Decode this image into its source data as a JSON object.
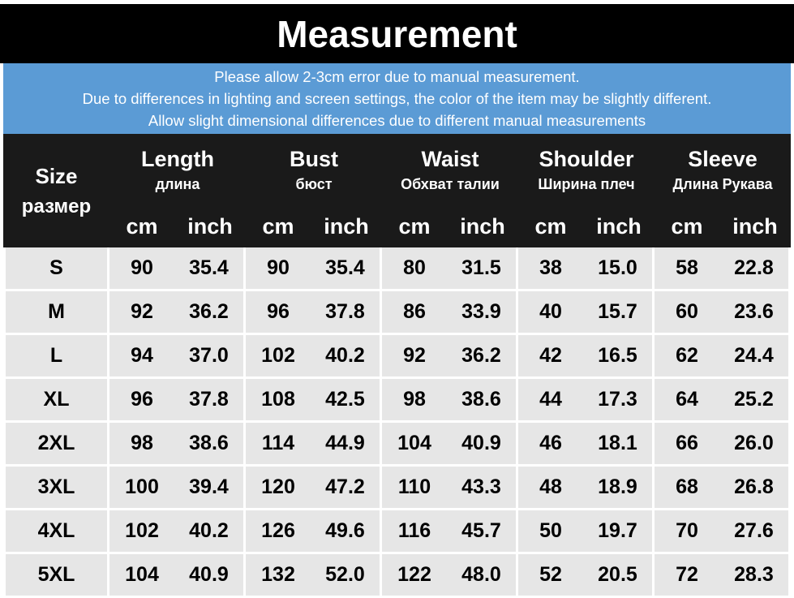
{
  "header": {
    "title": "Measurement",
    "notes": [
      "Please allow 2-3cm error due to manual measurement.",
      "Due to differences in lighting and screen settings, the color of the item may be slightly different.",
      "Allow slight dimensional differences due to different manual measurements"
    ]
  },
  "table": {
    "size_label": "Size",
    "size_label_ru": "размер",
    "groups": [
      {
        "name": "Length",
        "name_ru": "длина"
      },
      {
        "name": "Bust",
        "name_ru": "бюст"
      },
      {
        "name": "Waist",
        "name_ru": "Обхват талии"
      },
      {
        "name": "Shoulder",
        "name_ru": "Ширина плеч"
      },
      {
        "name": "Sleeve",
        "name_ru": "Длина Рукава"
      }
    ],
    "units": [
      "cm",
      "inch"
    ],
    "rows": [
      [
        "S",
        "90",
        "35.4",
        "90",
        "35.4",
        "80",
        "31.5",
        "38",
        "15.0",
        "58",
        "22.8"
      ],
      [
        "M",
        "92",
        "36.2",
        "96",
        "37.8",
        "86",
        "33.9",
        "40",
        "15.7",
        "60",
        "23.6"
      ],
      [
        "L",
        "94",
        "37.0",
        "102",
        "40.2",
        "92",
        "36.2",
        "42",
        "16.5",
        "62",
        "24.4"
      ],
      [
        "XL",
        "96",
        "37.8",
        "108",
        "42.5",
        "98",
        "38.6",
        "44",
        "17.3",
        "64",
        "25.2"
      ],
      [
        "2XL",
        "98",
        "38.6",
        "114",
        "44.9",
        "104",
        "40.9",
        "46",
        "18.1",
        "66",
        "26.0"
      ],
      [
        "3XL",
        "100",
        "39.4",
        "120",
        "47.2",
        "110",
        "43.3",
        "48",
        "18.9",
        "68",
        "26.8"
      ],
      [
        "4XL",
        "102",
        "40.2",
        "126",
        "49.6",
        "116",
        "45.7",
        "50",
        "19.7",
        "70",
        "27.6"
      ],
      [
        "5XL",
        "104",
        "40.9",
        "132",
        "52.0",
        "122",
        "48.0",
        "52",
        "20.5",
        "72",
        "28.3"
      ]
    ]
  }
}
